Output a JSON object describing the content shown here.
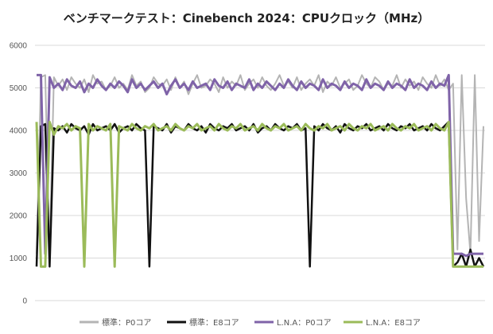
{
  "chart_data": {
    "type": "line",
    "title": "ベンチマークテスト：Cinebench 2024：CPUクロック（MHz）",
    "xlabel": "",
    "ylabel": "",
    "ylim": [
      0,
      6000
    ],
    "yticks": [
      "0",
      "1000",
      "2000",
      "3000",
      "4000",
      "5000",
      "6000"
    ],
    "grid": true,
    "legend_position": "bottom",
    "series": [
      {
        "name": "標準：P0コア",
        "color": "#b4b4b4",
        "values": [
          1100,
          5250,
          5300,
          1100,
          5250,
          5050,
          5200,
          4950,
          5250,
          5100,
          5000,
          5200,
          4900,
          5300,
          5100,
          5150,
          4950,
          5050,
          5250,
          5000,
          5100,
          4950,
          5300,
          5050,
          5150,
          4900,
          5000,
          5250,
          5100,
          5050,
          5200,
          4950,
          5250,
          5000,
          5150,
          4850,
          5100,
          5300,
          5000,
          5050,
          5200,
          5100,
          4900,
          5250,
          5000,
          5150,
          5050,
          5300,
          4950,
          5100,
          5200,
          5000,
          5250,
          5050,
          4950,
          5100,
          5300,
          5050,
          5150,
          5000,
          5250,
          4950,
          5100,
          5200,
          5050,
          5300,
          4900,
          5150,
          5050,
          5250,
          5000,
          5100,
          5200,
          4950,
          5050,
          5300,
          5100,
          5000,
          5250,
          5150,
          4950,
          5100,
          5050,
          5300,
          5000,
          5200,
          5050,
          5150,
          4950,
          5250,
          5100,
          5000,
          5300,
          5050,
          5200,
          4950,
          5100,
          1200,
          5300,
          2400,
          1100,
          5300,
          1400,
          4100
        ]
      },
      {
        "name": "標準：E8コア",
        "color": "#111111",
        "values": [
          800,
          4100,
          4150,
          800,
          4050,
          4000,
          4100,
          3950,
          4150,
          4050,
          4000,
          4100,
          3900,
          4150,
          4000,
          4050,
          4100,
          4000,
          4150,
          3950,
          4050,
          4100,
          4000,
          4150,
          4050,
          4000,
          800,
          4100,
          4050,
          4000,
          4150,
          3950,
          4100,
          4050,
          4000,
          4150,
          4050,
          4000,
          4100,
          3950,
          4150,
          4050,
          4000,
          4100,
          4050,
          4150,
          4000,
          4050,
          4100,
          4000,
          4150,
          3950,
          4050,
          4100,
          4000,
          4150,
          4050,
          4000,
          4100,
          4050,
          4150,
          4000,
          4050,
          800,
          4100,
          4000,
          4150,
          4050,
          4000,
          4100,
          3950,
          4150,
          4050,
          4000,
          4100,
          4050,
          4150,
          4000,
          4050,
          4100,
          4000,
          4150,
          4050,
          4000,
          4100,
          4050,
          4150,
          4000,
          4050,
          4100,
          4000,
          4150,
          4050,
          4000,
          4100,
          4200,
          800,
          900,
          1100,
          800,
          1200,
          800,
          1000,
          800
        ]
      },
      {
        "name": "L.N.A：P0コア",
        "color": "#7f63a8",
        "values": [
          5300,
          5300,
          1100,
          5250,
          5000,
          5100,
          4950,
          5200,
          5050,
          5000,
          5150,
          4900,
          5100,
          5000,
          5200,
          5050,
          4950,
          5100,
          5000,
          5150,
          5050,
          4900,
          5200,
          5000,
          5100,
          4950,
          5050,
          5150,
          5000,
          5100,
          4850,
          5050,
          5200,
          5000,
          5100,
          4950,
          5150,
          5000,
          5050,
          5100,
          4950,
          5200,
          5050,
          5000,
          5150,
          4950,
          5100,
          5050,
          5000,
          5200,
          4950,
          5100,
          5000,
          5150,
          5050,
          4950,
          5100,
          5000,
          5200,
          5050,
          4950,
          5150,
          5000,
          5100,
          5050,
          4950,
          5200,
          5000,
          5100,
          5050,
          4950,
          5150,
          5000,
          5100,
          5050,
          4950,
          5200,
          5000,
          5100,
          5050,
          4950,
          5150,
          5000,
          5100,
          5050,
          4950,
          5200,
          5000,
          5100,
          5050,
          4950,
          5150,
          5000,
          5100,
          5050,
          5300,
          1100,
          1100,
          1100,
          1050,
          1100,
          1100,
          1100,
          1100
        ]
      },
      {
        "name": "L.N.A：E8コア",
        "color": "#9bbb59",
        "values": [
          4200,
          800,
          800,
          4200,
          3900,
          4100,
          4050,
          4150,
          4000,
          4100,
          4050,
          800,
          4150,
          4000,
          4100,
          4050,
          4000,
          4150,
          800,
          4100,
          4050,
          4000,
          4150,
          4050,
          4000,
          4100,
          4050,
          4150,
          4000,
          4050,
          4100,
          4000,
          4150,
          4050,
          4000,
          4100,
          4050,
          4150,
          4000,
          4050,
          4100,
          4000,
          4150,
          4050,
          4000,
          4100,
          4050,
          4150,
          4000,
          4050,
          4100,
          4000,
          4150,
          4050,
          4000,
          4100,
          4050,
          4150,
          4000,
          4050,
          4100,
          4000,
          4150,
          4050,
          4000,
          4100,
          4050,
          4150,
          4000,
          4050,
          4100,
          4000,
          4150,
          4050,
          4000,
          4100,
          4050,
          4150,
          4000,
          4050,
          4100,
          4000,
          4150,
          4050,
          4000,
          4100,
          4050,
          4150,
          4000,
          4050,
          4100,
          4000,
          4150,
          4050,
          4000,
          4200,
          800,
          800,
          800,
          800,
          800,
          800,
          800,
          800
        ]
      }
    ]
  }
}
